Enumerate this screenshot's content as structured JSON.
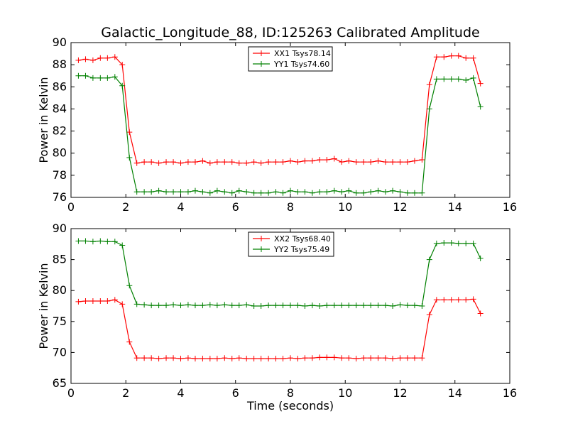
{
  "title": "Galactic_Longitude_88, ID:125263 Calibrated Amplitude",
  "chart_data": [
    {
      "type": "line",
      "ylabel": "Power in Kelvin",
      "xlabel": "",
      "xlim": [
        0,
        16
      ],
      "ylim": [
        76,
        90
      ],
      "xticks": [
        0,
        2,
        4,
        6,
        8,
        10,
        12,
        14,
        16
      ],
      "yticks": [
        76,
        78,
        80,
        82,
        84,
        86,
        88,
        90
      ],
      "legend_position": "top-center",
      "grid": false,
      "series": [
        {
          "name": "XX1 Tsys78.14",
          "color": "#ff0000",
          "x": [
            0.27,
            0.53,
            0.8,
            1.07,
            1.33,
            1.6,
            1.87,
            2.13,
            2.4,
            2.67,
            2.93,
            3.2,
            3.47,
            3.73,
            4.0,
            4.27,
            4.53,
            4.8,
            5.07,
            5.33,
            5.6,
            5.87,
            6.13,
            6.4,
            6.67,
            6.93,
            7.2,
            7.47,
            7.73,
            8.0,
            8.27,
            8.53,
            8.8,
            9.07,
            9.33,
            9.6,
            9.87,
            10.13,
            10.4,
            10.67,
            10.93,
            11.2,
            11.47,
            11.73,
            12.0,
            12.27,
            12.53,
            12.8,
            13.07,
            13.33,
            13.6,
            13.87,
            14.13,
            14.4,
            14.67,
            14.93
          ],
          "y": [
            88.4,
            88.5,
            88.4,
            88.6,
            88.6,
            88.7,
            88.0,
            81.9,
            79.1,
            79.2,
            79.2,
            79.1,
            79.2,
            79.2,
            79.1,
            79.2,
            79.2,
            79.3,
            79.1,
            79.2,
            79.2,
            79.2,
            79.1,
            79.1,
            79.2,
            79.1,
            79.2,
            79.2,
            79.2,
            79.3,
            79.2,
            79.3,
            79.3,
            79.4,
            79.4,
            79.5,
            79.2,
            79.3,
            79.2,
            79.2,
            79.2,
            79.3,
            79.2,
            79.2,
            79.2,
            79.2,
            79.3,
            79.4,
            86.2,
            88.7,
            88.7,
            88.8,
            88.8,
            88.6,
            88.6,
            86.3
          ]
        },
        {
          "name": "YY1 Tsys74.60",
          "color": "#008000",
          "x": [
            0.27,
            0.53,
            0.8,
            1.07,
            1.33,
            1.6,
            1.87,
            2.13,
            2.4,
            2.67,
            2.93,
            3.2,
            3.47,
            3.73,
            4.0,
            4.27,
            4.53,
            4.8,
            5.07,
            5.33,
            5.6,
            5.87,
            6.13,
            6.4,
            6.67,
            6.93,
            7.2,
            7.47,
            7.73,
            8.0,
            8.27,
            8.53,
            8.8,
            9.07,
            9.33,
            9.6,
            9.87,
            10.13,
            10.4,
            10.67,
            10.93,
            11.2,
            11.47,
            11.73,
            12.0,
            12.27,
            12.53,
            12.8,
            13.07,
            13.33,
            13.6,
            13.87,
            14.13,
            14.4,
            14.67,
            14.93
          ],
          "y": [
            87.0,
            87.0,
            86.8,
            86.8,
            86.8,
            86.9,
            86.1,
            79.6,
            76.5,
            76.5,
            76.5,
            76.6,
            76.5,
            76.5,
            76.5,
            76.5,
            76.6,
            76.5,
            76.4,
            76.6,
            76.5,
            76.4,
            76.6,
            76.5,
            76.4,
            76.4,
            76.4,
            76.5,
            76.4,
            76.6,
            76.5,
            76.5,
            76.4,
            76.5,
            76.5,
            76.6,
            76.5,
            76.6,
            76.4,
            76.4,
            76.5,
            76.6,
            76.5,
            76.6,
            76.5,
            76.4,
            76.4,
            76.4,
            84.0,
            86.7,
            86.7,
            86.7,
            86.7,
            86.6,
            86.8,
            84.2
          ]
        }
      ]
    },
    {
      "type": "line",
      "ylabel": "Power in Kelvin",
      "xlabel": "Time (seconds)",
      "xlim": [
        0,
        16
      ],
      "ylim": [
        65,
        90
      ],
      "xticks": [
        0,
        2,
        4,
        6,
        8,
        10,
        12,
        14,
        16
      ],
      "yticks": [
        65,
        70,
        75,
        80,
        85,
        90
      ],
      "legend_position": "top-center",
      "grid": false,
      "series": [
        {
          "name": "XX2 Tsys68.40",
          "color": "#ff0000",
          "x": [
            0.27,
            0.53,
            0.8,
            1.07,
            1.33,
            1.6,
            1.87,
            2.13,
            2.4,
            2.67,
            2.93,
            3.2,
            3.47,
            3.73,
            4.0,
            4.27,
            4.53,
            4.8,
            5.07,
            5.33,
            5.6,
            5.87,
            6.13,
            6.4,
            6.67,
            6.93,
            7.2,
            7.47,
            7.73,
            8.0,
            8.27,
            8.53,
            8.8,
            9.07,
            9.33,
            9.6,
            9.87,
            10.13,
            10.4,
            10.67,
            10.93,
            11.2,
            11.47,
            11.73,
            12.0,
            12.27,
            12.53,
            12.8,
            13.07,
            13.33,
            13.6,
            13.87,
            14.13,
            14.4,
            14.67,
            14.93
          ],
          "y": [
            78.2,
            78.3,
            78.3,
            78.3,
            78.3,
            78.5,
            77.8,
            71.7,
            69.1,
            69.1,
            69.1,
            69.0,
            69.1,
            69.1,
            69.0,
            69.1,
            69.0,
            69.0,
            69.0,
            69.0,
            69.1,
            69.0,
            69.1,
            69.0,
            69.0,
            69.0,
            69.0,
            69.0,
            69.0,
            69.1,
            69.0,
            69.1,
            69.1,
            69.2,
            69.2,
            69.2,
            69.1,
            69.1,
            69.0,
            69.1,
            69.1,
            69.1,
            69.1,
            69.0,
            69.1,
            69.1,
            69.1,
            69.1,
            76.1,
            78.5,
            78.5,
            78.5,
            78.5,
            78.5,
            78.6,
            76.3
          ]
        },
        {
          "name": "YY2 Tsys75.49",
          "color": "#008000",
          "x": [
            0.27,
            0.53,
            0.8,
            1.07,
            1.33,
            1.6,
            1.87,
            2.13,
            2.4,
            2.67,
            2.93,
            3.2,
            3.47,
            3.73,
            4.0,
            4.27,
            4.53,
            4.8,
            5.07,
            5.33,
            5.6,
            5.87,
            6.13,
            6.4,
            6.67,
            6.93,
            7.2,
            7.47,
            7.73,
            8.0,
            8.27,
            8.53,
            8.8,
            9.07,
            9.33,
            9.6,
            9.87,
            10.13,
            10.4,
            10.67,
            10.93,
            11.2,
            11.47,
            11.73,
            12.0,
            12.27,
            12.53,
            12.8,
            13.07,
            13.33,
            13.6,
            13.87,
            14.13,
            14.4,
            14.67,
            14.93
          ],
          "y": [
            88.0,
            88.0,
            87.9,
            88.0,
            87.9,
            87.9,
            87.3,
            80.8,
            77.8,
            77.7,
            77.6,
            77.6,
            77.6,
            77.7,
            77.6,
            77.7,
            77.6,
            77.6,
            77.7,
            77.6,
            77.7,
            77.6,
            77.6,
            77.7,
            77.5,
            77.5,
            77.6,
            77.6,
            77.6,
            77.6,
            77.6,
            77.5,
            77.6,
            77.5,
            77.6,
            77.6,
            77.6,
            77.6,
            77.6,
            77.6,
            77.6,
            77.6,
            77.6,
            77.5,
            77.7,
            77.6,
            77.6,
            77.5,
            85.0,
            87.6,
            87.7,
            87.7,
            87.6,
            87.6,
            87.6,
            85.2
          ]
        }
      ]
    }
  ]
}
